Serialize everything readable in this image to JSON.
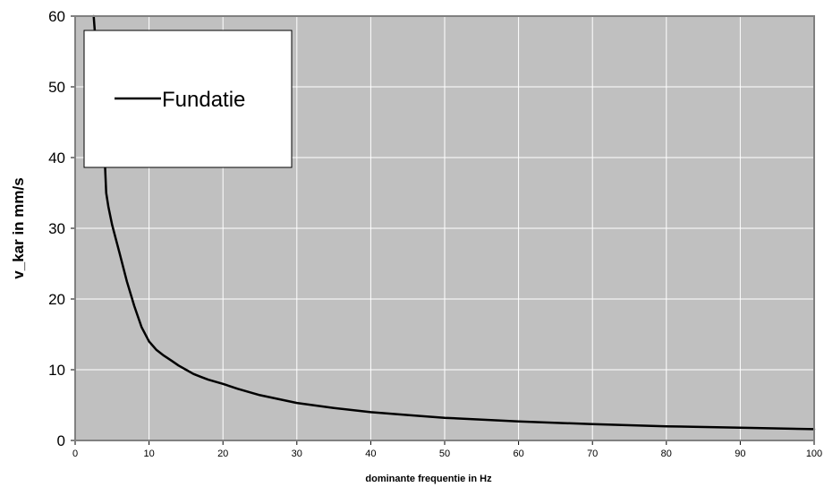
{
  "chart_data": {
    "type": "line",
    "title": "",
    "xlabel": "dominante frequentie in Hz",
    "ylabel": "v_kar in mm/s",
    "xlim": [
      0,
      100
    ],
    "ylim": [
      0,
      60
    ],
    "x_ticks": [
      0,
      10,
      20,
      30,
      40,
      50,
      60,
      70,
      80,
      90,
      100
    ],
    "y_ticks": [
      0,
      10,
      20,
      30,
      40,
      50,
      60
    ],
    "grid": true,
    "plot_background": "#c0c0c0",
    "grid_color": "#ffffff",
    "line_color": "#000000",
    "legend_position": "top-left",
    "series": [
      {
        "name": "Fundatie",
        "x": [
          2.5,
          2.8,
          3.1,
          3.4,
          3.7,
          4.0,
          4.2,
          4.5,
          5,
          6,
          7,
          8,
          9,
          10,
          11,
          12,
          13,
          14,
          15,
          16,
          17,
          18,
          20,
          22,
          25,
          30,
          35,
          40,
          45,
          50,
          60,
          70,
          80,
          90,
          100
        ],
        "y": [
          60,
          56,
          52,
          48,
          43,
          40,
          35,
          33,
          30.5,
          26.5,
          22.5,
          19,
          16,
          14,
          12.8,
          12,
          11.3,
          10.6,
          10,
          9.4,
          9,
          8.6,
          8,
          7.3,
          6.4,
          5.3,
          4.6,
          4,
          3.6,
          3.2,
          2.7,
          2.3,
          2,
          1.8,
          1.6
        ]
      }
    ]
  }
}
